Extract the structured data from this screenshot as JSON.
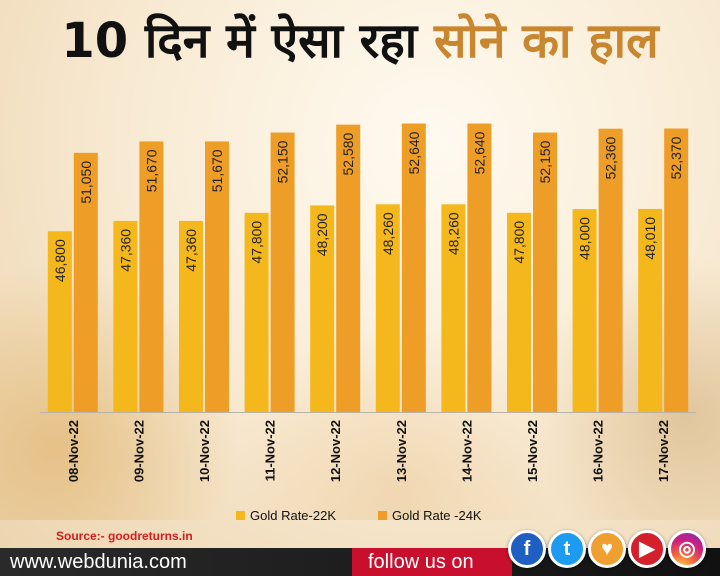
{
  "title": {
    "part1": "10 दिन में ऐसा रहा",
    "part2": "सोने का हाल"
  },
  "chart_data": {
    "type": "bar",
    "categories": [
      "08-Nov-22",
      "09-Nov-22",
      "10-Nov-22",
      "11-Nov-22",
      "12-Nov-22",
      "13-Nov-22",
      "14-Nov-22",
      "15-Nov-22",
      "16-Nov-22",
      "17-Nov-22"
    ],
    "series": [
      {
        "name": "Gold Rate-22K",
        "values": [
          46800,
          47360,
          47360,
          47800,
          48200,
          48260,
          48260,
          47800,
          48000,
          48010
        ],
        "labels": [
          "46,800",
          "47,360",
          "47,360",
          "47,800",
          "48,200",
          "48,260",
          "48,260",
          "47,800",
          "48,000",
          "48,010"
        ],
        "color": "#f4b71c"
      },
      {
        "name": "Gold Rate -24K",
        "values": [
          51050,
          51670,
          51670,
          52150,
          52580,
          52640,
          52640,
          52150,
          52360,
          52370
        ],
        "labels": [
          "51,050",
          "51,670",
          "51,670",
          "52,150",
          "52,580",
          "52,640",
          "52,640",
          "52,150",
          "52,360",
          "52,370"
        ],
        "color": "#ee9d27"
      }
    ],
    "ylim": [
      37000,
      55000
    ],
    "grid": false,
    "legend_position": "bottom"
  },
  "source": "Source:- goodreturns.in",
  "footer": {
    "site": "www.webdunia.com",
    "follow": "follow us on",
    "social": [
      {
        "icon": "facebook-icon",
        "glyph": "f"
      },
      {
        "icon": "twitter-icon",
        "glyph": "t"
      },
      {
        "icon": "webdunia-icon",
        "glyph": "♥"
      },
      {
        "icon": "youtube-icon",
        "glyph": "▶"
      },
      {
        "icon": "instagram-icon",
        "glyph": "◎"
      }
    ]
  },
  "colors": {
    "title_dark": "#111111",
    "title_gold": "#c8862e",
    "bar_22k": "#f4b71c",
    "bar_24k": "#ee9d27",
    "source_red": "#d21f1f",
    "follow_red": "#c8102e"
  }
}
